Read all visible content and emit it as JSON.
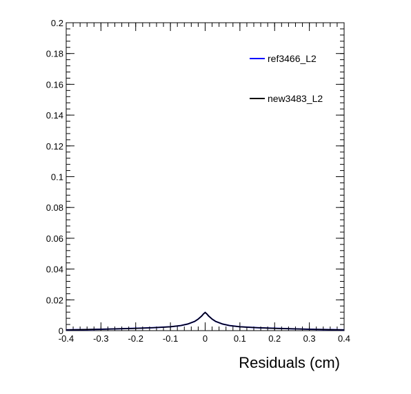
{
  "chart_data": {
    "type": "line",
    "title": "",
    "xlabel": "Residuals (cm)",
    "ylabel": "",
    "xlim": [
      -0.4,
      0.4
    ],
    "ylim": [
      0,
      0.2
    ],
    "x_ticks": [
      "-0.4",
      "-0.3",
      "-0.2",
      "-0.1",
      "0",
      "0.1",
      "0.2",
      "0.3",
      "0.4"
    ],
    "y_ticks": [
      "0",
      "0.02",
      "0.04",
      "0.06",
      "0.08",
      "0.1",
      "0.12",
      "0.14",
      "0.16",
      "0.18",
      "0.2"
    ],
    "grid": false,
    "legend_position": "top-right",
    "x": [
      -0.4,
      -0.3,
      -0.2,
      -0.15,
      -0.1,
      -0.07,
      -0.05,
      -0.03,
      -0.02,
      -0.01,
      -0.005,
      0,
      0.005,
      0.01,
      0.02,
      0.03,
      0.05,
      0.07,
      0.1,
      0.15,
      0.2,
      0.3,
      0.4
    ],
    "series": [
      {
        "name": "ref3466_L2",
        "color": "#0000ff",
        "values": [
          0.0005,
          0.0009,
          0.0015,
          0.0019,
          0.0025,
          0.0033,
          0.0043,
          0.006,
          0.0075,
          0.0095,
          0.0108,
          0.0118,
          0.0108,
          0.0095,
          0.0075,
          0.006,
          0.0043,
          0.0033,
          0.0025,
          0.0019,
          0.0015,
          0.0009,
          0.0005
        ]
      },
      {
        "name": "new3483_L2",
        "color": "#000000",
        "values": [
          0.0005,
          0.0009,
          0.0015,
          0.0019,
          0.0025,
          0.0033,
          0.0043,
          0.006,
          0.0075,
          0.0095,
          0.0108,
          0.0118,
          0.0108,
          0.0095,
          0.0075,
          0.006,
          0.0043,
          0.0033,
          0.0025,
          0.0019,
          0.0015,
          0.0009,
          0.0005
        ]
      }
    ]
  }
}
